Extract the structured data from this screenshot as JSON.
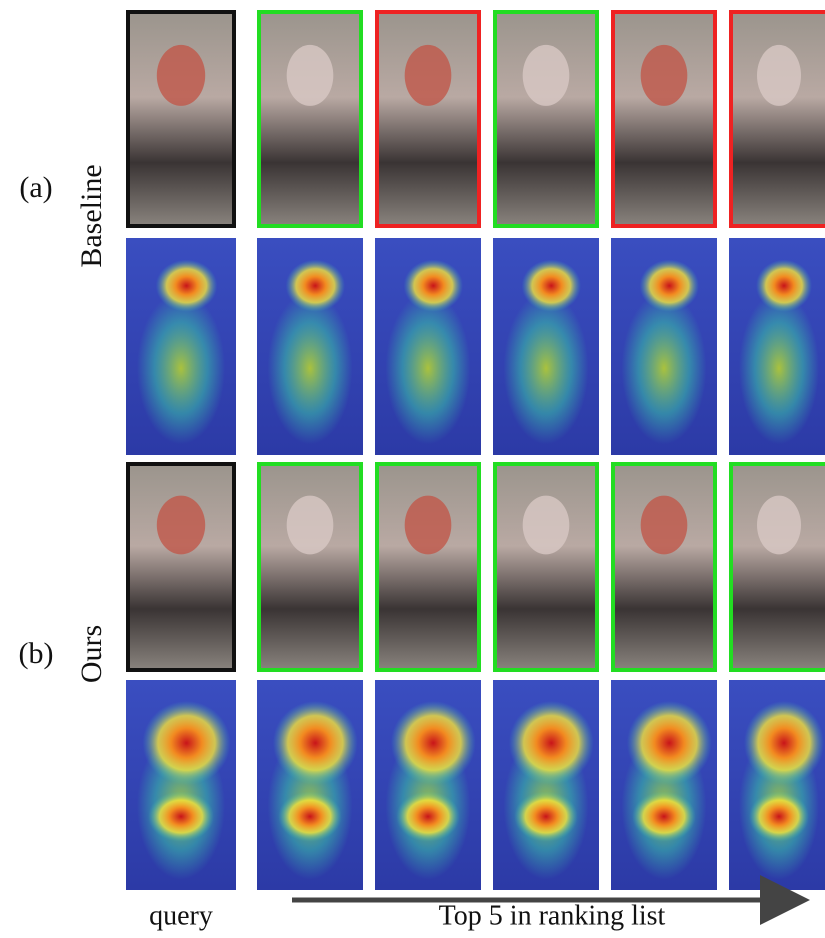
{
  "rows": {
    "a_label": "(a)",
    "a_name": "Baseline",
    "b_label": "(b)",
    "b_name": "Ours"
  },
  "footer": {
    "query": "query",
    "ranking": "Top 5 in ranking list"
  }
}
